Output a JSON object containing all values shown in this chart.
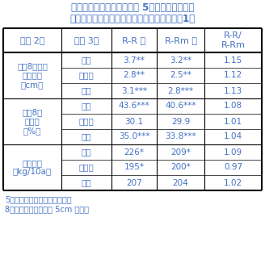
{
  "title_line1": "表２　収穫前２カ月～直前 5）の土壌の矩形板",
  "title_line2": "　沈下量と含水比、大豆収量（平均値と比）1）",
  "header": [
    "項目 2）",
    "土壌 3）",
    "R-R 区",
    "R-Rm 区",
    "R-R/\nR-Rm"
  ],
  "rows": [
    {
      "item": "土壌8）矩形\n板沈下量\n（cm）",
      "soil": [
        "湿潤",
        "非湿潤",
        "全体"
      ],
      "rr": [
        "3.7**",
        "2.8**",
        "3.1***"
      ],
      "rrm": [
        "3.2**",
        "2.5**",
        "2.8***"
      ],
      "ratio": [
        "1.15",
        "1.12",
        "1.13"
      ]
    },
    {
      "item": "土壌8）\n含水比\n（%）",
      "soil": [
        "湿潤",
        "非湿潤",
        "全体"
      ],
      "rr": [
        "43.6***",
        "30.1",
        "35.0***"
      ],
      "rrm": [
        "40.6***",
        "29.9",
        "33.8***"
      ],
      "ratio": [
        "1.08",
        "1.01",
        "1.04"
      ]
    },
    {
      "item": "大豆収量\n（kg/10a）",
      "soil": [
        "湿潤",
        "非湿潤",
        "全体"
      ],
      "rr": [
        "226*",
        "195*",
        "207"
      ],
      "rrm": [
        "209*",
        "200*",
        "204"
      ],
      "ratio": [
        "1.09",
        "0.97",
        "1.02"
      ]
    }
  ],
  "footnotes": [
    "5）ほ場により測定日が異なる",
    "8）畝斜面上部の表層 5cm の土壌"
  ],
  "text_color": "#4472C4",
  "bg_color": "#FFFFFF",
  "title_fontsize": 8.5,
  "cell_fontsize": 7.5,
  "header_fontsize": 8.0,
  "footnote_fontsize": 7.0
}
